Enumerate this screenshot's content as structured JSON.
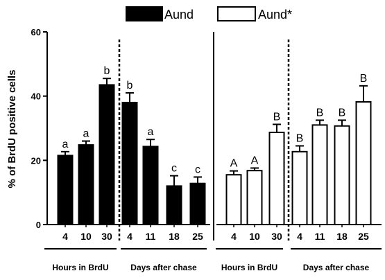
{
  "chart_data": {
    "type": "bar",
    "ylabel": "% of BrdU positive cells",
    "ylim": [
      0,
      60
    ],
    "yticks": [
      0,
      20,
      40,
      60
    ],
    "legend_position": "top-center",
    "series": [
      {
        "name": "Aund",
        "fill": "#000000",
        "groups": [
          {
            "label": "Hours in BrdU",
            "categories": [
              "4",
              "10",
              "30"
            ],
            "values": [
              21.5,
              24.8,
              43.5
            ],
            "errors": [
              1.2,
              1.2,
              2.0
            ],
            "letters": [
              "a",
              "a",
              "b"
            ]
          },
          {
            "label": "Days after chase",
            "categories": [
              "4",
              "11",
              "18",
              "25"
            ],
            "values": [
              38.0,
              24.3,
              12.0,
              12.8
            ],
            "errors": [
              3.0,
              2.2,
              3.2,
              2.0
            ],
            "letters": [
              "b",
              "a",
              "c",
              "c"
            ]
          }
        ]
      },
      {
        "name": "Aund*",
        "fill": "#ffffff",
        "groups": [
          {
            "label": "Hours in BrdU",
            "categories": [
              "4",
              "10",
              "30"
            ],
            "values": [
              15.5,
              16.8,
              28.7
            ],
            "errors": [
              1.2,
              0.8,
              2.5
            ],
            "letters": [
              "A",
              "A",
              "B"
            ]
          },
          {
            "label": "Days after chase",
            "categories": [
              "4",
              "11",
              "18",
              "25"
            ],
            "values": [
              22.7,
              31.0,
              30.7,
              38.2
            ],
            "errors": [
              1.8,
              1.5,
              1.8,
              5.0
            ],
            "letters": [
              "B",
              "B",
              "B",
              "B"
            ]
          }
        ]
      }
    ]
  }
}
